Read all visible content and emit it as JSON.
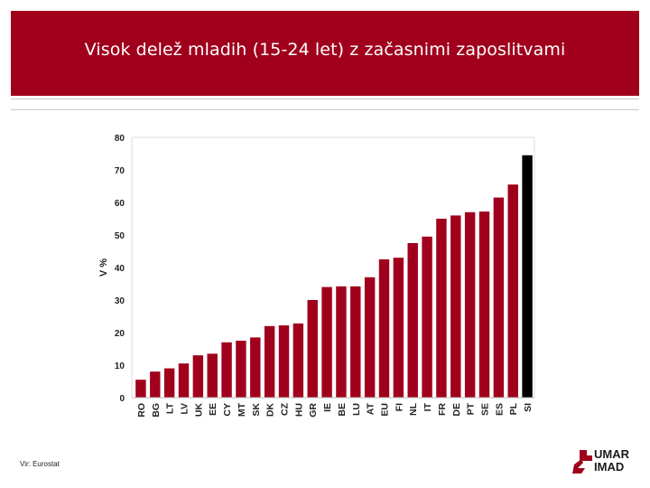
{
  "slide": {
    "title": "Visok delež mladih (15-24 let) z začasnimi zaposlitvami",
    "source": "Vir: Eurostat",
    "logo": {
      "line1": "UMAR",
      "line2": "IMAD",
      "icon": "umar-logo-icon"
    },
    "colors": {
      "title_bg": "#a0001c",
      "bar": "#a0001c",
      "highlight_bar": "#000000"
    }
  },
  "chart_data": {
    "type": "bar",
    "ylabel": "V %",
    "ylim": [
      0,
      80
    ],
    "yticks": [
      0,
      10,
      20,
      30,
      40,
      50,
      60,
      70,
      80
    ],
    "grid": false,
    "highlight": "SI",
    "categories": [
      "RO",
      "BG",
      "LT",
      "LV",
      "UK",
      "EE",
      "CY",
      "MT",
      "SK",
      "DK",
      "CZ",
      "HU",
      "GR",
      "IE",
      "BE",
      "LU",
      "AT",
      "EU",
      "FI",
      "NL",
      "IT",
      "FR",
      "DE",
      "PT",
      "SE",
      "ES",
      "PL",
      "SI"
    ],
    "values": [
      5.5,
      8,
      9,
      10.5,
      13,
      13.5,
      17,
      17.5,
      18.5,
      22,
      22.2,
      22.8,
      30,
      34,
      34.2,
      34.2,
      37,
      42.5,
      43,
      47.5,
      49.5,
      55,
      56,
      57,
      57.2,
      61.5,
      65.5,
      74.5
    ]
  }
}
